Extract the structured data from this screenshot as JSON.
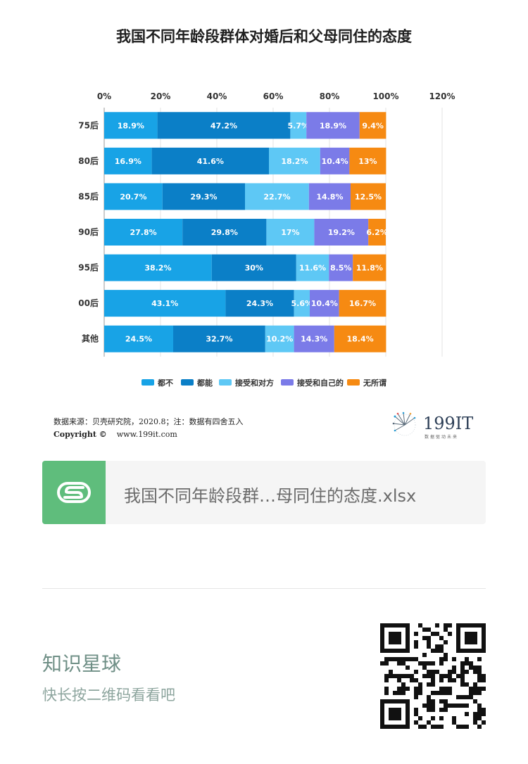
{
  "chart_data": {
    "type": "bar",
    "orientation": "horizontal",
    "stacked": true,
    "title": "我国不同年龄段群体对婚后和父母同住的态度",
    "categories": [
      "75后",
      "80后",
      "85后",
      "90后",
      "95后",
      "00后",
      "其他"
    ],
    "xlim": [
      0,
      120
    ],
    "xticks": [
      "0%",
      "20%",
      "40%",
      "60%",
      "80%",
      "100%",
      "120%"
    ],
    "grid": true,
    "legend_position": "bottom",
    "series": [
      {
        "name": "都不",
        "color": "#18a3e6",
        "values": [
          18.9,
          16.9,
          20.7,
          27.8,
          38.2,
          43.1,
          24.5
        ],
        "labels": [
          "18.9%",
          "16.9%",
          "20.7%",
          "27.8%",
          "38.2%",
          "43.1%",
          "24.5%"
        ]
      },
      {
        "name": "都能",
        "color": "#0b7fc7",
        "values": [
          47.2,
          41.6,
          29.3,
          29.8,
          30,
          24.3,
          32.7
        ],
        "labels": [
          "47.2%",
          "41.6%",
          "29.3%",
          "29.8%",
          "30%",
          "24.3%",
          "32.7%"
        ]
      },
      {
        "name": "接受和对方",
        "color": "#5ec8f5",
        "values": [
          5.7,
          18.2,
          22.7,
          17,
          11.6,
          5.6,
          10.2
        ],
        "labels": [
          "5.7%",
          "18.2%",
          "22.7%",
          "17%",
          "11.6%",
          "5.6%",
          "10.2%"
        ]
      },
      {
        "name": "接受和自己的",
        "color": "#7b7be8",
        "values": [
          18.9,
          10.4,
          14.8,
          19.2,
          8.5,
          10.4,
          14.3
        ],
        "labels": [
          "18.9%",
          "10.4%",
          "14.8%",
          "19.2%",
          "8.5%",
          "10.4%",
          "14.3%"
        ]
      },
      {
        "name": "无所谓",
        "color": "#f68a12",
        "values": [
          9.4,
          13,
          12.5,
          6.2,
          11.8,
          16.7,
          18.4
        ],
        "labels": [
          "9.4%",
          "13%",
          "12.5%",
          "6.2%",
          "11.8%",
          "16.7%",
          "18.4%"
        ]
      }
    ]
  },
  "source": {
    "line1": "数据来源：贝壳研究院，2020.8；注：数据有四舍五入",
    "copyright": "Copyright ©",
    "website": "www.199it.com"
  },
  "brand": {
    "name": "199IT",
    "tagline": "数据驱动未来"
  },
  "file_card": {
    "icon_letter": "S",
    "file_name": "我国不同年龄段群…母同住的态度.xlsx"
  },
  "footer": {
    "title": "知识星球",
    "subtitle": "快长按二维码看看吧"
  }
}
